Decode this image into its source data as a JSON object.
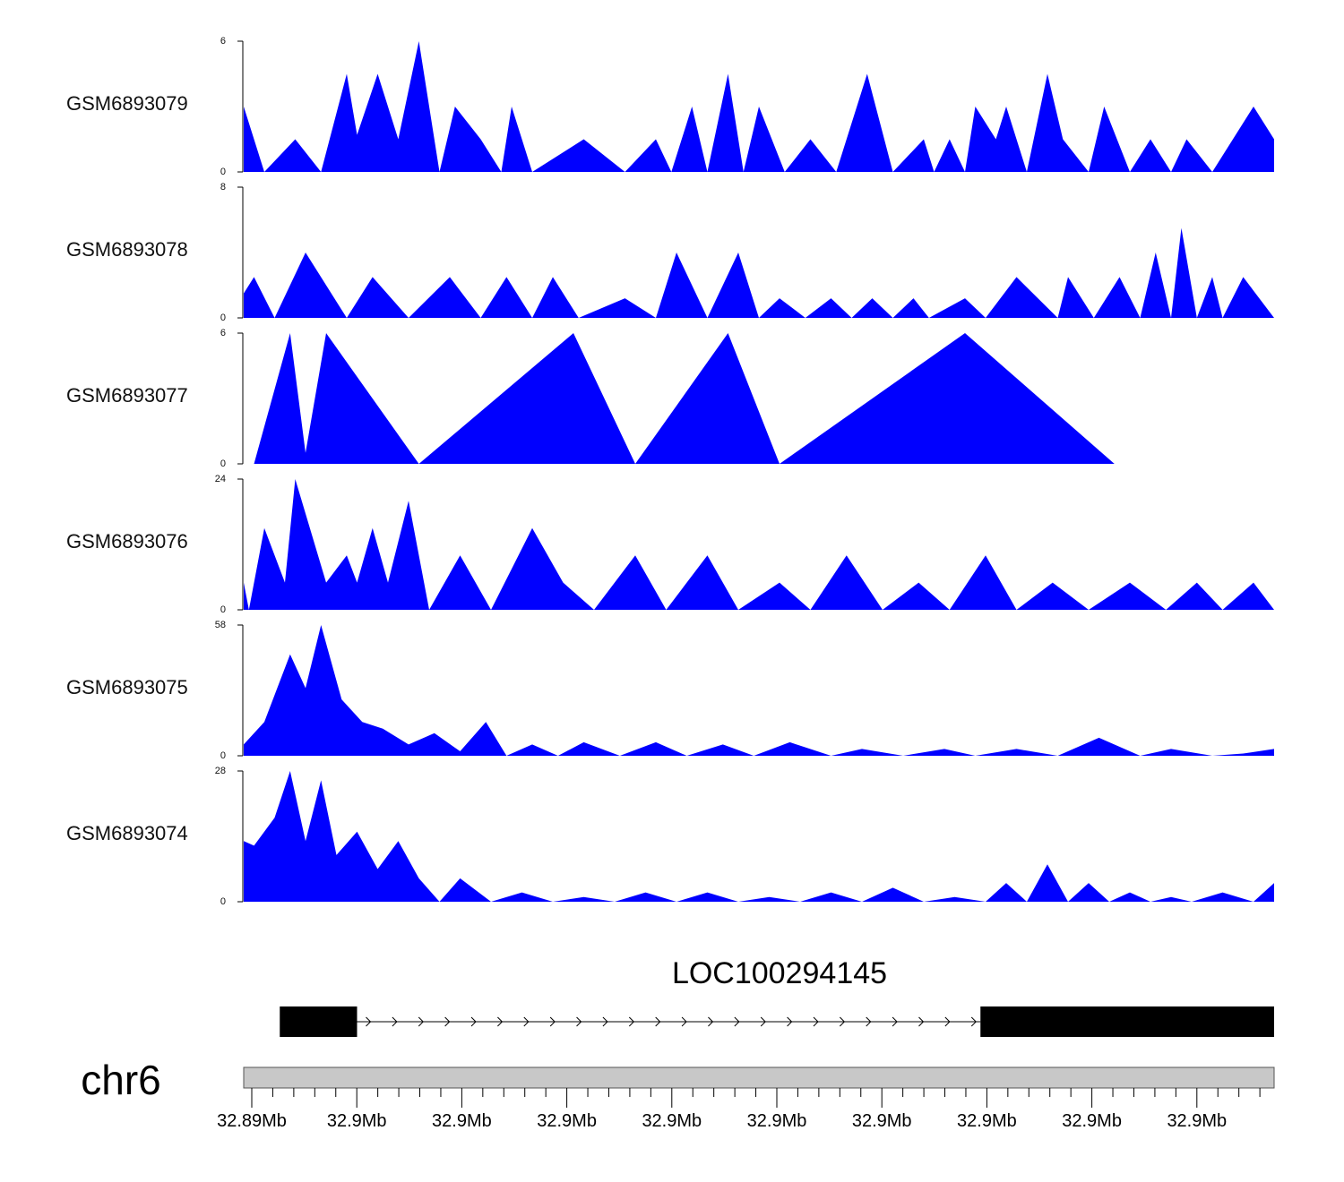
{
  "chart_data": {
    "type": "area",
    "description_free": true,
    "fill_color": "#0000ff",
    "axis_color": "#000000",
    "region": {
      "start": 32891000,
      "end": 32901000
    },
    "tracks": [
      {
        "name": "GSM6893079",
        "ylim": [
          0,
          6
        ],
        "ytick_labels": [
          "0",
          "6"
        ],
        "x": [
          32891000,
          32891200,
          32891500,
          32891750,
          32892000,
          32892100,
          32892300,
          32892500,
          32892700,
          32892900,
          32893050,
          32893300,
          32893500,
          32893600,
          32893800,
          32894300,
          32894700,
          32895000,
          32895150,
          32895350,
          32895500,
          32895700,
          32895850,
          32896000,
          32896250,
          32896500,
          32896750,
          32897050,
          32897300,
          32897600,
          32897700,
          32897850,
          32898000,
          32898100,
          32898300,
          32898400,
          32898600,
          32898800,
          32898950,
          32899200,
          32899350,
          32899600,
          32899800,
          32900000,
          32900150,
          32900400,
          32900800,
          32901000
        ],
        "values": [
          3,
          0,
          1.5,
          0,
          4.5,
          1.7,
          4.5,
          1.5,
          6,
          0,
          3,
          1.5,
          0,
          3,
          0,
          1.5,
          0,
          1.5,
          0,
          3,
          0,
          4.5,
          0,
          3,
          0,
          1.5,
          0,
          4.5,
          0,
          1.5,
          0,
          1.5,
          0,
          3,
          1.5,
          3,
          0,
          4.5,
          1.5,
          0,
          3,
          0,
          1.5,
          0,
          1.5,
          0,
          3,
          1.5
        ]
      },
      {
        "name": "GSM6893078",
        "ylim": [
          0,
          8
        ],
        "ytick_labels": [
          "0",
          "8"
        ],
        "x": [
          32891000,
          32891100,
          32891300,
          32891600,
          32892000,
          32892250,
          32892600,
          32893000,
          32893300,
          32893550,
          32893800,
          32894000,
          32894250,
          32894700,
          32895000,
          32895200,
          32895500,
          32895800,
          32896000,
          32896200,
          32896450,
          32896700,
          32896900,
          32897100,
          32897300,
          32897500,
          32897650,
          32898000,
          32898200,
          32898500,
          32898900,
          32899000,
          32899250,
          32899500,
          32899700,
          32899850,
          32900000,
          32900100,
          32900250,
          32900400,
          32900500,
          32900700,
          32901000
        ],
        "values": [
          1.5,
          2.5,
          0,
          4,
          0,
          2.5,
          0,
          2.5,
          0,
          2.5,
          0,
          2.5,
          0,
          1.2,
          0,
          4,
          0,
          4,
          0,
          1.2,
          0,
          1.2,
          0,
          1.2,
          0,
          1.2,
          0,
          1.2,
          0,
          2.5,
          0,
          2.5,
          0,
          2.5,
          0,
          4,
          0,
          5.5,
          0,
          2.5,
          0,
          2.5,
          0
        ]
      },
      {
        "name": "GSM6893077",
        "ylim": [
          0,
          6
        ],
        "ytick_labels": [
          "0",
          "6"
        ],
        "x": [
          32891100,
          32891450,
          32891600,
          32891800,
          32892700,
          32894200,
          32894800,
          32895700,
          32896200,
          32898000,
          32899450,
          32900000
        ],
        "values": [
          0,
          6,
          0.5,
          6,
          0,
          6,
          0,
          6,
          0,
          6,
          0,
          0
        ]
      },
      {
        "name": "GSM6893076",
        "ylim": [
          0,
          24
        ],
        "ytick_labels": [
          "0",
          "24"
        ],
        "x": [
          32891000,
          32891050,
          32891200,
          32891400,
          32891500,
          32891800,
          32892000,
          32892100,
          32892250,
          32892400,
          32892600,
          32892800,
          32893100,
          32893400,
          32893800,
          32894100,
          32894400,
          32894800,
          32895100,
          32895500,
          32895800,
          32896200,
          32896500,
          32896850,
          32897200,
          32897550,
          32897850,
          32898200,
          32898500,
          32898850,
          32899200,
          32899600,
          32899950,
          32900250,
          32900500,
          32900800,
          32901000
        ],
        "values": [
          5,
          0,
          15,
          5,
          24,
          5,
          10,
          5,
          15,
          5,
          20,
          0,
          10,
          0,
          15,
          5,
          0,
          10,
          0,
          10,
          0,
          5,
          0,
          10,
          0,
          5,
          0,
          10,
          0,
          5,
          0,
          5,
          0,
          5,
          0,
          5,
          0
        ]
      },
      {
        "name": "GSM6893075",
        "ylim": [
          0,
          58
        ],
        "ytick_labels": [
          "0",
          "58"
        ],
        "x": [
          32891000,
          32891200,
          32891450,
          32891600,
          32891750,
          32891950,
          32892150,
          32892350,
          32892600,
          32892850,
          32893100,
          32893350,
          32893550,
          32893800,
          32894050,
          32894300,
          32894650,
          32895000,
          32895300,
          32895650,
          32895950,
          32896300,
          32896700,
          32897000,
          32897400,
          32897800,
          32898100,
          32898500,
          32898900,
          32899300,
          32899700,
          32900000,
          32900400,
          32900700,
          32901000
        ],
        "values": [
          5,
          15,
          45,
          30,
          58,
          25,
          15,
          12,
          5,
          10,
          2,
          15,
          0,
          5,
          0,
          6,
          0,
          6,
          0,
          5,
          0,
          6,
          0,
          3,
          0,
          3,
          0,
          3,
          0,
          8,
          0,
          3,
          0,
          1,
          3
        ]
      },
      {
        "name": "GSM6893074",
        "ylim": [
          0,
          28
        ],
        "ytick_labels": [
          "0",
          "28"
        ],
        "x": [
          32891000,
          32891100,
          32891300,
          32891450,
          32891600,
          32891750,
          32891900,
          32892100,
          32892300,
          32892500,
          32892700,
          32892900,
          32893100,
          32893400,
          32893700,
          32894000,
          32894300,
          32894600,
          32894900,
          32895200,
          32895500,
          32895800,
          32896100,
          32896400,
          32896700,
          32897000,
          32897300,
          32897600,
          32897900,
          32898200,
          32898400,
          32898600,
          32898800,
          32899000,
          32899200,
          32899400,
          32899600,
          32899800,
          32900000,
          32900200,
          32900500,
          32900800,
          32901000
        ],
        "values": [
          13,
          12,
          18,
          28,
          13,
          26,
          10,
          15,
          7,
          13,
          5,
          0,
          5,
          0,
          2,
          0,
          1,
          0,
          2,
          0,
          2,
          0,
          1,
          0,
          2,
          0,
          3,
          0,
          1,
          0,
          4,
          0,
          8,
          0,
          4,
          0,
          2,
          0,
          1,
          0,
          2,
          0,
          4
        ]
      }
    ],
    "gene": {
      "name": "LOC100294145",
      "exons": [
        [
          32891350,
          32892100
        ],
        [
          32898150,
          32901000
        ]
      ],
      "strand": "+"
    },
    "chromosome": "chr6",
    "xtick_labels": [
      "32.89Mb",
      "32.9Mb",
      "32.9Mb",
      "32.9Mb",
      "32.9Mb",
      "32.9Mb",
      "32.9Mb",
      "32.9Mb",
      "32.9Mb",
      "32.9Mb"
    ]
  }
}
